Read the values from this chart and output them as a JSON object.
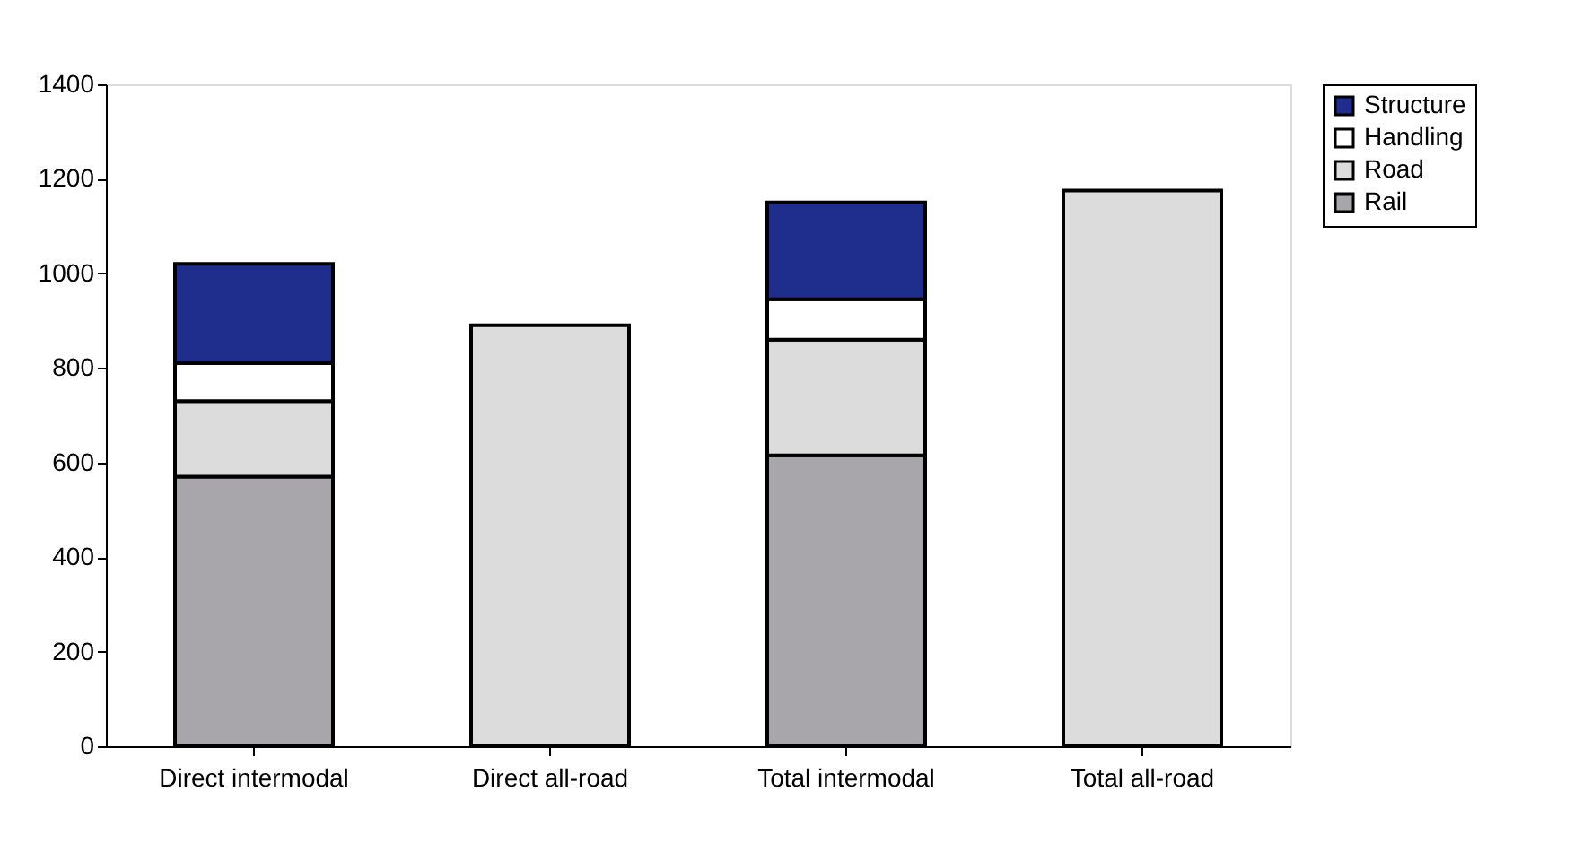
{
  "chart_data": {
    "type": "bar",
    "stacked": true,
    "categories": [
      "Direct intermodal",
      "Direct all-road",
      "Total intermodal",
      "Total all-road"
    ],
    "series": [
      {
        "name": "Rail",
        "color": "#a8a6aa",
        "values": [
          570,
          null,
          615,
          null
        ]
      },
      {
        "name": "Road",
        "color": "#dcdcdc",
        "values": [
          160,
          890,
          245,
          1175
        ]
      },
      {
        "name": "Handling",
        "color": "#ffffff",
        "values": [
          80,
          null,
          85,
          null
        ]
      },
      {
        "name": "Structure",
        "color": "#1f2d8c",
        "values": [
          210,
          null,
          205,
          null
        ]
      }
    ],
    "ylim": [
      0,
      1400
    ],
    "yticks": [
      0,
      200,
      400,
      600,
      800,
      1000,
      1200,
      1400
    ],
    "grid": false,
    "legend": "right"
  }
}
